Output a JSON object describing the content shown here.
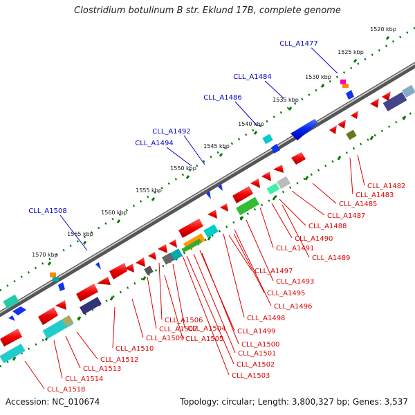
{
  "title": "Clostridium botulinum B str. Eklund 17B, complete genome",
  "footer": {
    "accession": "Accession: NC_010674",
    "summary": "Topology: circular; Length: 3,800,327 bp; Genes: 3,537"
  },
  "colors": {
    "plus_strand_label": "#0000cc",
    "minus_strand_label": "#dd0000",
    "tick": "#007700",
    "backbone": "#888888"
  },
  "ticks": [
    {
      "label": "1520 kbp",
      "major": true
    },
    {
      "label": "1525 kbp",
      "major": true
    },
    {
      "label": "1530 kbp",
      "major": true
    },
    {
      "label": "1535 kbp",
      "major": true
    },
    {
      "label": "1540 kbp",
      "major": true
    },
    {
      "label": "1545 kbp",
      "major": true
    },
    {
      "label": "1550 kbp",
      "major": true
    },
    {
      "label": "1555 kbp",
      "major": true
    },
    {
      "label": "1560 kbp",
      "major": true
    },
    {
      "label": "1565 kbp",
      "major": true
    },
    {
      "label": "1570 kbp",
      "major": true
    }
  ],
  "plus_labels": [
    "CLL_A1477",
    "CLL_A1484",
    "CLL_A1486",
    "CLL_A1492",
    "CLL_A1494",
    "CLL_A1508"
  ],
  "minus_labels": [
    "CLL_A1482",
    "CLL_A1483",
    "CLL_A1485",
    "CLL_A1487",
    "CLL_A1488",
    "CLL_A1490",
    "CLL_A1491",
    "CLL_A1489",
    "CLL_A1497",
    "CLL_A1493",
    "CLL_A1495",
    "CLL_A1496",
    "CLL_A1498",
    "CLL_A1499",
    "CLL_A1500",
    "CLL_A1501",
    "CLL_A1502",
    "CLL_A1503",
    "CLL_A1506",
    "CLL_A1504",
    "CLL_A1507",
    "CLL_A1505",
    "CLL_A1509",
    "CLL_A1510",
    "CLL_A1512",
    "CLL_A1513",
    "CLL_A1514",
    "CLL_A1518"
  ]
}
